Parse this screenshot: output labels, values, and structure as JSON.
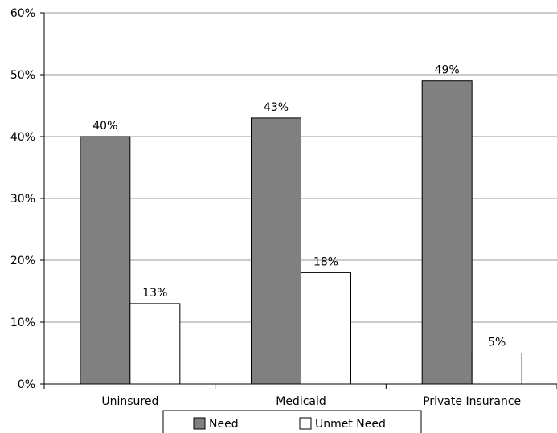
{
  "chart_data": {
    "type": "bar",
    "title": "",
    "xlabel": "",
    "ylabel": "",
    "categories": [
      "Uninsured",
      "Medicaid",
      "Private Insurance"
    ],
    "series": [
      {
        "name": "Need",
        "values": [
          40,
          43,
          49
        ],
        "color": "#808080"
      },
      {
        "name": "Unmet Need",
        "values": [
          13,
          18,
          5
        ],
        "color": "#ffffff"
      }
    ],
    "data_labels": [
      [
        "40%",
        "43%",
        "49%"
      ],
      [
        "13%",
        "18%",
        "5%"
      ]
    ],
    "ylim": [
      0,
      60
    ],
    "yticks": [
      0,
      10,
      20,
      30,
      40,
      50,
      60
    ],
    "ytick_labels": [
      "0%",
      "10%",
      "20%",
      "30%",
      "40%",
      "50%",
      "60%"
    ],
    "grid": true,
    "legend_position": "bottom"
  }
}
